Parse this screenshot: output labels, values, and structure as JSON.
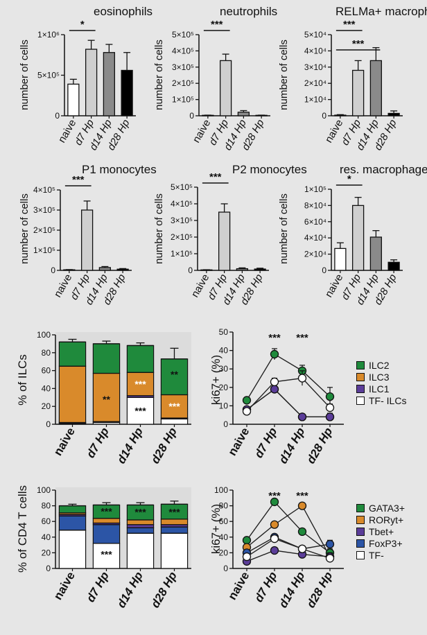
{
  "figure": {
    "background": "#e6e6e6"
  },
  "chart_data": [
    {
      "id": "eos",
      "type": "bar",
      "title": "eosinophils",
      "ylabel": "number of cells",
      "categories": [
        "naive",
        "d7 Hp",
        "d14 Hp",
        "d28 Hp"
      ],
      "values": [
        390000,
        820000,
        780000,
        560000
      ],
      "errors": [
        60000,
        110000,
        100000,
        220000
      ],
      "colors": [
        "#ffffff",
        "#cfcfcf",
        "#8a8a8a",
        "#000000"
      ],
      "ylim": [
        0,
        1000000
      ],
      "ticks": [
        0,
        500000,
        1000000
      ],
      "tick_labels": [
        "0",
        "5×10⁵",
        "1×10⁶"
      ],
      "significance": [
        {
          "from": 0,
          "to": 1,
          "label": "*"
        }
      ]
    },
    {
      "id": "neu",
      "type": "bar",
      "title": "neutrophils",
      "ylabel": "number of cells",
      "categories": [
        "naive",
        "d7 Hp",
        "d14 Hp",
        "d28 Hp"
      ],
      "values": [
        3000,
        340000,
        22000,
        3000
      ],
      "errors": [
        1000,
        40000,
        10000,
        1000
      ],
      "colors": [
        "#ffffff",
        "#cfcfcf",
        "#8a8a8a",
        "#000000"
      ],
      "ylim": [
        0,
        500000
      ],
      "ticks": [
        0,
        100000,
        200000,
        300000,
        400000,
        500000
      ],
      "tick_labels": [
        "0",
        "1×10⁵",
        "2×10⁵",
        "3×10⁵",
        "4×10⁵",
        "5×10⁵"
      ],
      "significance": [
        {
          "from": 0,
          "to": 1,
          "label": "***"
        }
      ]
    },
    {
      "id": "relm",
      "type": "bar",
      "title": "RELMa+ macrophages",
      "ylabel": "number of cells",
      "categories": [
        "naive",
        "d7 Hp",
        "d14 Hp",
        "d28 Hp"
      ],
      "values": [
        400,
        28000,
        34000,
        1500
      ],
      "errors": [
        300,
        6000,
        8000,
        1500
      ],
      "colors": [
        "#ffffff",
        "#cfcfcf",
        "#8a8a8a",
        "#000000"
      ],
      "ylim": [
        0,
        50000
      ],
      "ticks": [
        0,
        10000,
        20000,
        30000,
        40000,
        50000
      ],
      "tick_labels": [
        "0",
        "1×10⁴",
        "2×10⁴",
        "3×10⁴",
        "4×10⁴",
        "5×10⁴"
      ],
      "significance": [
        {
          "from": 0,
          "to": 1,
          "label": "***"
        },
        {
          "from": 0,
          "to": 2,
          "label": "***"
        }
      ]
    },
    {
      "id": "p1",
      "type": "bar",
      "title": "P1 monocytes",
      "ylabel": "number of cells",
      "categories": [
        "naive",
        "d7 Hp",
        "d14 Hp",
        "d28 Hp"
      ],
      "values": [
        3000,
        300000,
        14000,
        6000
      ],
      "errors": [
        1000,
        45000,
        5000,
        3000
      ],
      "colors": [
        "#ffffff",
        "#cfcfcf",
        "#8a8a8a",
        "#000000"
      ],
      "ylim": [
        0,
        400000
      ],
      "ticks": [
        0,
        100000,
        200000,
        300000,
        400000
      ],
      "tick_labels": [
        "0",
        "1×10⁵",
        "2×10⁵",
        "3×10⁵",
        "4×10⁵"
      ],
      "significance": [
        {
          "from": 0,
          "to": 1,
          "label": "***"
        }
      ]
    },
    {
      "id": "p2",
      "type": "bar",
      "title": "P2 monocytes",
      "ylabel": "number of cells",
      "categories": [
        "naive",
        "d7 Hp",
        "d14 Hp",
        "d28 Hp"
      ],
      "values": [
        3000,
        350000,
        10000,
        8000
      ],
      "errors": [
        1000,
        50000,
        5000,
        5000
      ],
      "colors": [
        "#ffffff",
        "#cfcfcf",
        "#8a8a8a",
        "#000000"
      ],
      "ylim": [
        0,
        500000
      ],
      "ticks": [
        0,
        100000,
        200000,
        300000,
        400000,
        500000
      ],
      "tick_labels": [
        "0",
        "1×10⁵",
        "2×10⁵",
        "3×10⁵",
        "4×10⁵",
        "5×10⁵"
      ],
      "significance": [
        {
          "from": 0,
          "to": 1,
          "label": "***"
        }
      ]
    },
    {
      "id": "res",
      "type": "bar",
      "title": "res. macrophages",
      "ylabel": "number of cells",
      "categories": [
        "naive",
        "d7 Hp",
        "d14 Hp",
        "d28 Hp"
      ],
      "values": [
        27000,
        80000,
        41000,
        10000
      ],
      "errors": [
        7000,
        10000,
        8000,
        3000
      ],
      "colors": [
        "#ffffff",
        "#cfcfcf",
        "#8a8a8a",
        "#000000"
      ],
      "ylim": [
        0,
        100000
      ],
      "ticks": [
        0,
        20000,
        40000,
        60000,
        80000,
        100000
      ],
      "tick_labels": [
        "0",
        "2×10⁴",
        "4×10⁴",
        "6×10⁴",
        "8×10⁴",
        "1×10⁵"
      ],
      "significance": [
        {
          "from": 0,
          "to": 1,
          "label": "*"
        }
      ]
    },
    {
      "id": "ilc_stack",
      "type": "stacked_bar",
      "ylabel": "% of ILCs",
      "categories": [
        "naive",
        "d7 Hp",
        "d14 Hp",
        "d28 Hp"
      ],
      "ylim": [
        0,
        100
      ],
      "ticks": [
        0,
        20,
        40,
        60,
        80,
        100
      ],
      "tick_labels": [
        "0",
        "20",
        "40",
        "60",
        "80",
        "100"
      ],
      "series": [
        {
          "name": "TF- ILCs",
          "color": "#ffffff",
          "values": [
            1,
            2,
            30,
            6
          ]
        },
        {
          "name": "ILC1",
          "color": "#5b3d99",
          "values": [
            1,
            1,
            2,
            1
          ]
        },
        {
          "name": "ILC3",
          "color": "#d98a2b",
          "values": [
            63,
            54,
            26,
            26
          ]
        },
        {
          "name": "ILC2",
          "color": "#1f8a3c",
          "values": [
            27,
            33,
            30,
            40
          ]
        }
      ],
      "errors": [
        3,
        3,
        3,
        12
      ],
      "annotations": [
        {
          "category": 1,
          "value": 28,
          "label": "**",
          "color": "#111111"
        },
        {
          "category": 2,
          "value": 15,
          "label": "***",
          "color": "#111111"
        },
        {
          "category": 2,
          "value": 45,
          "label": "***",
          "color": "#ffffff"
        },
        {
          "category": 3,
          "value": 20,
          "label": "***",
          "color": "#ffffff"
        },
        {
          "category": 3,
          "value": 56,
          "label": "**",
          "color": "#111111"
        }
      ],
      "legend": [
        {
          "name": "ILC2",
          "color": "#1f8a3c"
        },
        {
          "name": "ILC3",
          "color": "#d98a2b"
        },
        {
          "name": "ILC1",
          "color": "#5b3d99"
        },
        {
          "name": "TF- ILCs",
          "color": "#ffffff"
        }
      ]
    },
    {
      "id": "ilc_ki67",
      "type": "line",
      "ylabel": "ki67+ (%)",
      "categories": [
        "naive",
        "d7 Hp",
        "d14 Hp",
        "d28 Hp"
      ],
      "ylim": [
        0,
        50
      ],
      "ticks": [
        0,
        10,
        20,
        30,
        40,
        50
      ],
      "tick_labels": [
        "0",
        "10",
        "20",
        "30",
        "40",
        "50"
      ],
      "series": [
        {
          "name": "ILC2",
          "color": "#1f8a3c",
          "values": [
            13,
            38,
            29,
            15
          ],
          "errors": [
            1,
            3,
            3,
            5
          ]
        },
        {
          "name": "ILC3",
          "color": "#d98a2b",
          "values": [
            8,
            19,
            4,
            4
          ],
          "errors": [
            1,
            1,
            1,
            2
          ]
        },
        {
          "name": "ILC1",
          "color": "#5b3d99",
          "values": [
            8,
            19,
            4,
            4
          ],
          "errors": [
            1,
            1,
            1,
            1
          ]
        },
        {
          "name": "TF- ILCs",
          "color": "#ffffff",
          "values": [
            7,
            23,
            25,
            9
          ],
          "errors": [
            1,
            2,
            4,
            2
          ]
        }
      ],
      "significance": [
        {
          "category": 1,
          "label": "***"
        },
        {
          "category": 2,
          "label": "***"
        }
      ]
    },
    {
      "id": "cd4_stack",
      "type": "stacked_bar",
      "ylabel": "% of CD4 T cells",
      "categories": [
        "naive",
        "d7 Hp",
        "d14 Hp",
        "d28 Hp"
      ],
      "ylim": [
        0,
        100
      ],
      "ticks": [
        0,
        20,
        40,
        60,
        80,
        100
      ],
      "tick_labels": [
        "0",
        "20",
        "40",
        "60",
        "80",
        "100"
      ],
      "series": [
        {
          "name": "TF-",
          "color": "#ffffff",
          "values": [
            49,
            32,
            45,
            45
          ]
        },
        {
          "name": "FoxP3+",
          "color": "#2c55a6",
          "values": [
            18,
            24,
            7,
            8
          ]
        },
        {
          "name": "Tbet+",
          "color": "#5b3d99",
          "values": [
            2,
            2,
            4,
            3
          ]
        },
        {
          "name": "RORyt+",
          "color": "#d98a2b",
          "values": [
            2,
            6,
            6,
            7
          ]
        },
        {
          "name": "GATA3+",
          "color": "#1f8a3c",
          "values": [
            9,
            17,
            19,
            19
          ]
        }
      ],
      "errors": [
        2,
        3,
        3,
        4
      ],
      "annotations": [
        {
          "category": 1,
          "value": 73,
          "label": "***",
          "color": "#111111"
        },
        {
          "category": 1,
          "value": 18,
          "label": "***",
          "color": "#111111"
        },
        {
          "category": 2,
          "value": 72,
          "label": "***",
          "color": "#111111"
        },
        {
          "category": 3,
          "value": 72,
          "label": "***",
          "color": "#111111"
        }
      ],
      "legend": [
        {
          "name": "GATA3+",
          "color": "#1f8a3c"
        },
        {
          "name": "RORyt+",
          "color": "#d98a2b"
        },
        {
          "name": "Tbet+",
          "color": "#5b3d99"
        },
        {
          "name": "FoxP3+",
          "color": "#2c55a6"
        },
        {
          "name": "TF-",
          "color": "#ffffff"
        }
      ]
    },
    {
      "id": "cd4_ki67",
      "type": "line",
      "ylabel": "ki67+ (%)",
      "categories": [
        "naive",
        "d7 Hp",
        "d14 Hp",
        "d28 Hp"
      ],
      "ylim": [
        0,
        100
      ],
      "ticks": [
        0,
        20,
        40,
        60,
        80,
        100
      ],
      "tick_labels": [
        "0",
        "20",
        "40",
        "60",
        "80",
        "100"
      ],
      "series": [
        {
          "name": "GATA3+",
          "color": "#1f8a3c",
          "values": [
            36,
            85,
            47,
            20
          ],
          "errors": [
            3,
            2,
            3,
            5
          ]
        },
        {
          "name": "RORyt+",
          "color": "#d98a2b",
          "values": [
            27,
            56,
            80,
            15
          ],
          "errors": [
            3,
            3,
            3,
            5
          ]
        },
        {
          "name": "Tbet+",
          "color": "#5b3d99",
          "values": [
            9,
            23,
            18,
            15
          ],
          "errors": [
            2,
            3,
            3,
            4
          ]
        },
        {
          "name": "FoxP3+",
          "color": "#2c55a6",
          "values": [
            20,
            40,
            25,
            31
          ],
          "errors": [
            3,
            3,
            3,
            5
          ]
        },
        {
          "name": "TF-",
          "color": "#ffffff",
          "values": [
            15,
            38,
            25,
            13
          ],
          "errors": [
            2,
            3,
            3,
            4
          ]
        }
      ],
      "significance": [
        {
          "category": 1,
          "label": "***"
        },
        {
          "category": 2,
          "label": "***"
        }
      ]
    }
  ]
}
